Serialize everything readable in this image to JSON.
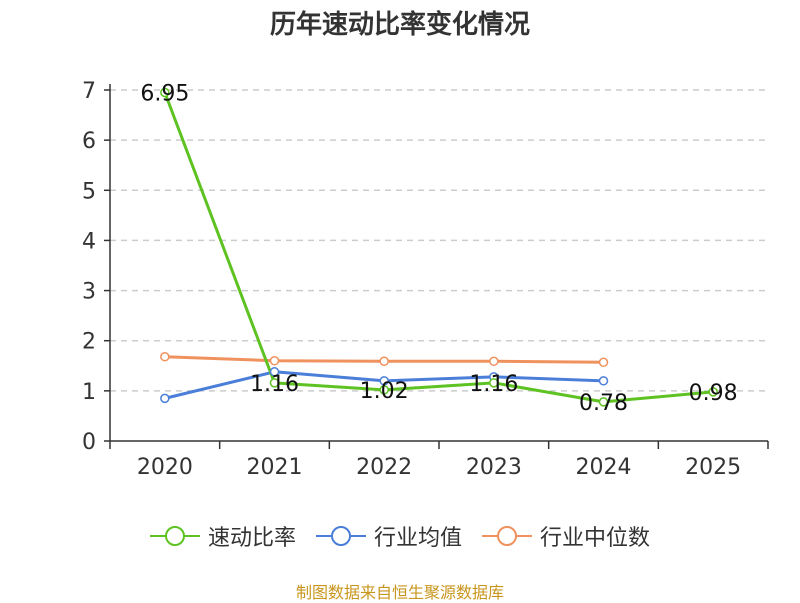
{
  "chart_data": {
    "type": "line",
    "title": "历年速动比率变化情况",
    "categories": [
      "2020",
      "2021",
      "2022",
      "2023",
      "2024",
      "2025"
    ],
    "ylim": [
      0,
      7
    ],
    "y_ticks": [
      "0",
      "1",
      "2",
      "3",
      "4",
      "5",
      "6",
      "7"
    ],
    "grid": true,
    "legend_position": "bottom",
    "series": [
      {
        "name": "速动比率",
        "color": "#5ec322",
        "values": [
          6.95,
          1.16,
          1.02,
          1.16,
          0.78,
          0.98
        ],
        "labels": [
          "6.95",
          "1.16",
          "1.02",
          "1.16",
          "0.78",
          "0.98"
        ]
      },
      {
        "name": "行业均值",
        "color": "#4a7ed9",
        "values": [
          0.85,
          1.38,
          1.2,
          1.28,
          1.2,
          null
        ]
      },
      {
        "name": "行业中位数",
        "color": "#f0925e",
        "values": [
          1.68,
          1.6,
          1.59,
          1.59,
          1.57,
          null
        ]
      }
    ]
  },
  "source_text": "制图数据来自恒生聚源数据库"
}
